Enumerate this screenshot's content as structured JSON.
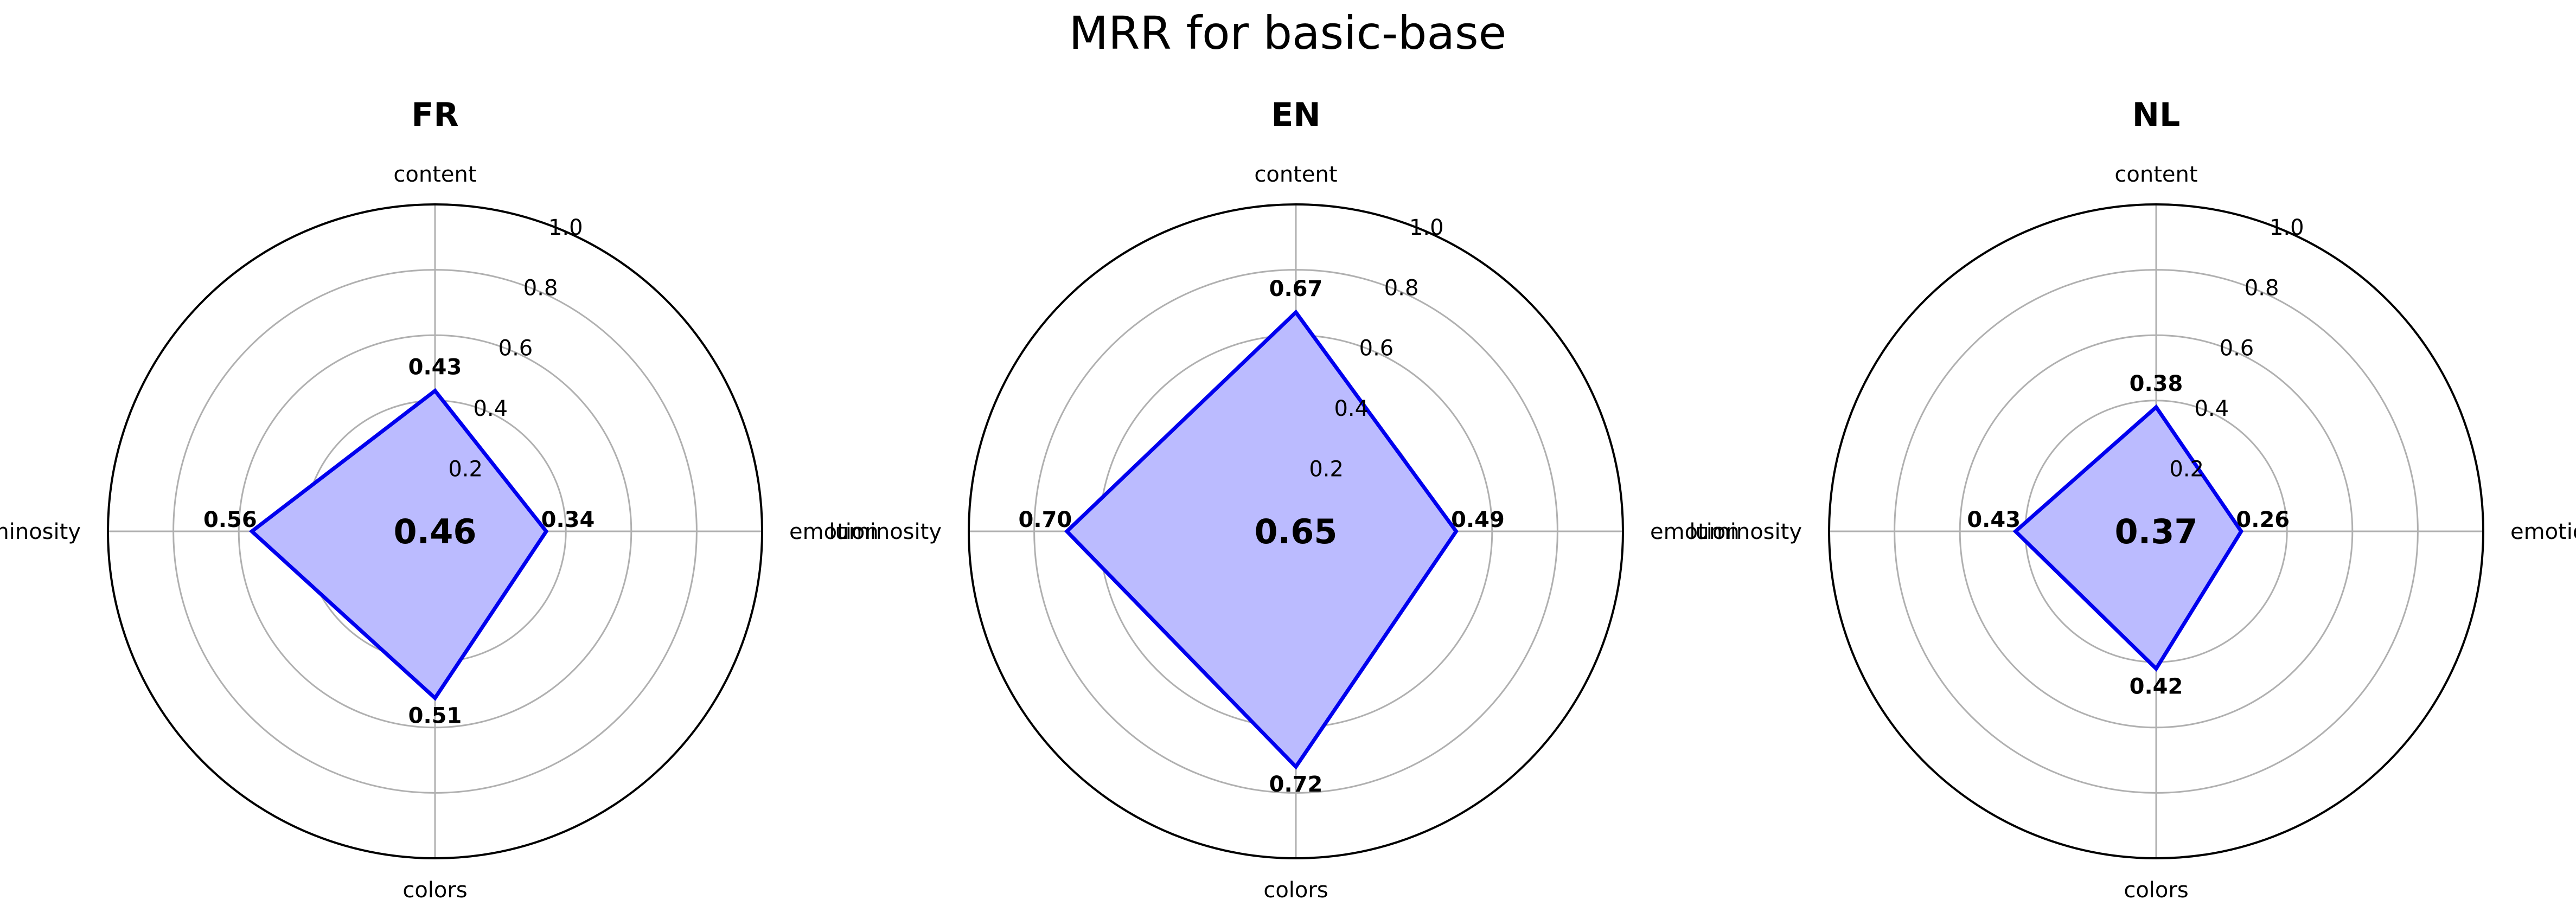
{
  "figure": {
    "title": "MRR for basic-base",
    "colors": {
      "line": "#0000ee",
      "fill": "#bbbbff",
      "grid": "#b0b0b0",
      "frame": "#000000"
    }
  },
  "chart_data": [
    {
      "type": "radar",
      "title": "FR",
      "axes": [
        "content",
        "emotion",
        "colors",
        "luminosity"
      ],
      "values": [
        0.43,
        0.34,
        0.51,
        0.56
      ],
      "value_labels": [
        "0.43",
        "0.34",
        "0.51",
        "0.56"
      ],
      "center_label": "0.46",
      "rlim": [
        0,
        1.0
      ],
      "r_ticks": [
        "0.2",
        "0.4",
        "0.6",
        "0.8",
        "1.0"
      ],
      "grid": true
    },
    {
      "type": "radar",
      "title": "EN",
      "axes": [
        "content",
        "emotion",
        "colors",
        "luminosity"
      ],
      "values": [
        0.67,
        0.49,
        0.72,
        0.7
      ],
      "value_labels": [
        "0.67",
        "0.49",
        "0.72",
        "0.70"
      ],
      "center_label": "0.65",
      "rlim": [
        0,
        1.0
      ],
      "r_ticks": [
        "0.2",
        "0.4",
        "0.6",
        "0.8",
        "1.0"
      ],
      "grid": true
    },
    {
      "type": "radar",
      "title": "NL",
      "axes": [
        "content",
        "emotion",
        "colors",
        "luminosity"
      ],
      "values": [
        0.38,
        0.26,
        0.42,
        0.43
      ],
      "value_labels": [
        "0.38",
        "0.26",
        "0.42",
        "0.43"
      ],
      "center_label": "0.37",
      "rlim": [
        0,
        1.0
      ],
      "r_ticks": [
        "0.2",
        "0.4",
        "0.6",
        "0.8",
        "1.0"
      ],
      "grid": true
    }
  ]
}
